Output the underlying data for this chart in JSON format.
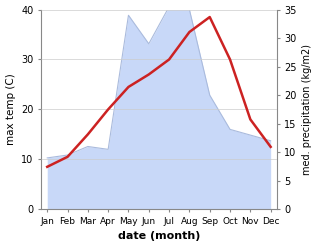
{
  "months": [
    "Jan",
    "Feb",
    "Mar",
    "Apr",
    "May",
    "Jun",
    "Jul",
    "Aug",
    "Sep",
    "Oct",
    "Nov",
    "Dec"
  ],
  "max_temp": [
    8.5,
    10.5,
    15.0,
    20.0,
    24.5,
    27.0,
    30.0,
    35.5,
    38.5,
    30.0,
    18.0,
    12.5
  ],
  "precipitation": [
    9.0,
    9.5,
    11.0,
    10.5,
    34.0,
    29.0,
    35.5,
    35.0,
    20.0,
    14.0,
    13.0,
    12.0
  ],
  "temp_color": "#cc2222",
  "precip_fill_color": "#c8d8f8",
  "precip_edge_color": "#aabbdd",
  "title": "",
  "xlabel": "date (month)",
  "ylabel_left": "max temp (C)",
  "ylabel_right": "med. precipitation (kg/m2)",
  "ylim_left": [
    0,
    40
  ],
  "ylim_right": [
    0,
    35
  ],
  "yticks_left": [
    0,
    10,
    20,
    30,
    40
  ],
  "yticks_right": [
    0,
    5,
    10,
    15,
    20,
    25,
    30,
    35
  ],
  "bg_color": "#ffffff",
  "grid_color": "#cccccc"
}
